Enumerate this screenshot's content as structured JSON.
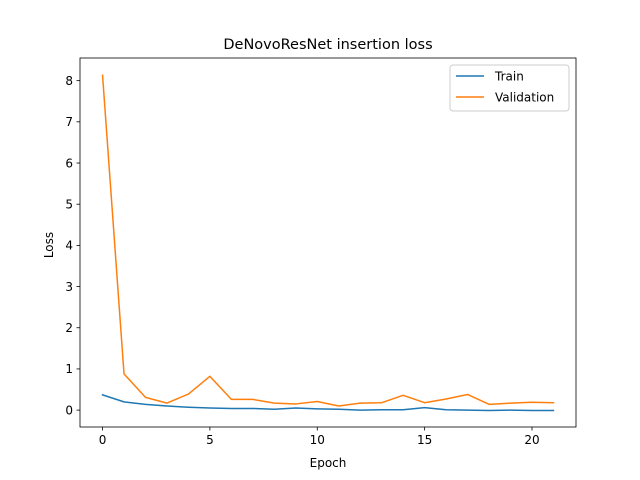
{
  "chart_data": {
    "type": "line",
    "title": "DeNovoResNet insertion loss",
    "xlabel": "Epoch",
    "ylabel": "Loss",
    "xlim": [
      -1.05,
      22.05
    ],
    "ylim": [
      -0.41,
      8.55
    ],
    "xticks": [
      0,
      5,
      10,
      15,
      20
    ],
    "yticks": [
      0,
      1,
      2,
      3,
      4,
      5,
      6,
      7,
      8
    ],
    "grid": false,
    "legend_position": "upper right",
    "x": [
      0,
      1,
      2,
      3,
      4,
      5,
      6,
      7,
      8,
      9,
      10,
      11,
      12,
      13,
      14,
      15,
      16,
      17,
      18,
      19,
      20,
      21
    ],
    "series": [
      {
        "name": "Train",
        "color": "#1f77b4",
        "values": [
          0.37,
          0.2,
          0.14,
          0.1,
          0.07,
          0.05,
          0.04,
          0.04,
          0.02,
          0.05,
          0.03,
          0.02,
          0.0,
          0.01,
          0.01,
          0.06,
          0.01,
          0.0,
          -0.01,
          0.0,
          -0.01,
          -0.01
        ]
      },
      {
        "name": "Validation",
        "color": "#ff7f0e",
        "values": [
          8.13,
          0.88,
          0.31,
          0.17,
          0.39,
          0.82,
          0.26,
          0.26,
          0.17,
          0.15,
          0.21,
          0.1,
          0.17,
          0.18,
          0.36,
          0.18,
          0.27,
          0.38,
          0.14,
          0.17,
          0.19,
          0.18
        ]
      }
    ]
  }
}
